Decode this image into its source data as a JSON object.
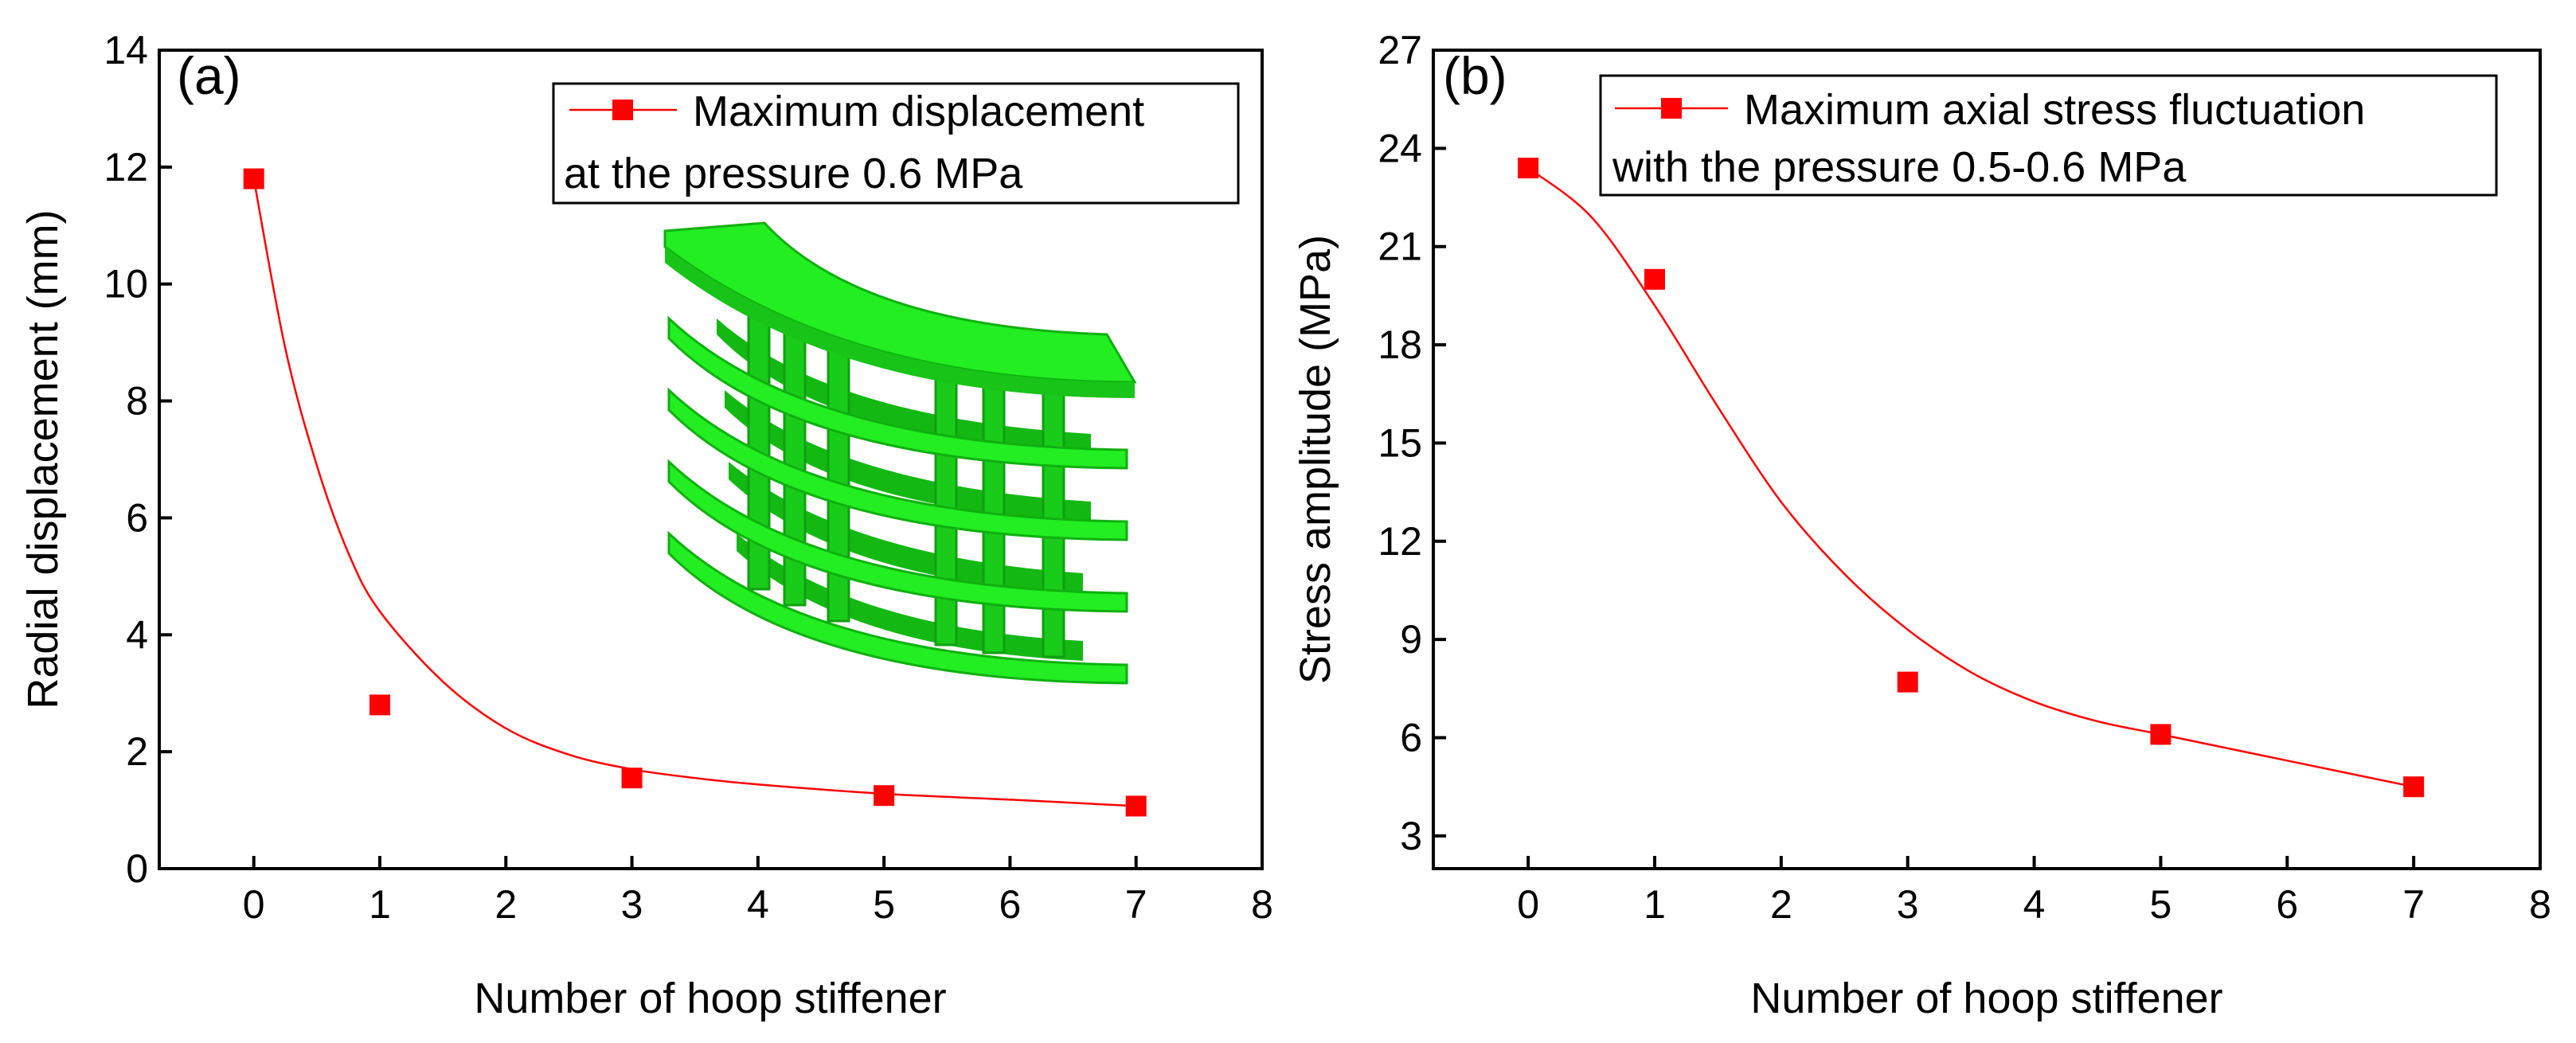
{
  "chart_data": [
    {
      "type": "scatter",
      "panel_label": "(a)",
      "xlabel": "Number of hoop stiffener",
      "ylabel": "Radial displacement (mm)",
      "xlim": [
        -0.75,
        8
      ],
      "ylim": [
        0,
        14
      ],
      "xticks": [
        0,
        1,
        2,
        3,
        4,
        5,
        6,
        7,
        8
      ],
      "yticks": [
        0,
        2,
        4,
        6,
        8,
        10,
        12,
        14
      ],
      "grid": false,
      "legend": {
        "placement": "top-right",
        "lines": [
          "Maximum displacement",
          "at the pressure 0.6 MPa"
        ]
      },
      "series": [
        {
          "name": "Maximum displacement at the pressure 0.6 MPa",
          "x": [
            0,
            1,
            3,
            5,
            7
          ],
          "y": [
            11.8,
            2.8,
            1.55,
            1.25,
            1.07
          ],
          "fit_curve": {
            "x": [
              0,
              0.25,
              0.5,
              0.75,
              1,
              1.5,
              2,
              2.5,
              3,
              3.5,
              4,
              5,
              6,
              7
            ],
            "y": [
              11.8,
              8.9,
              6.9,
              5.4,
              4.4,
              3.2,
              2.4,
              1.95,
              1.7,
              1.55,
              1.44,
              1.28,
              1.18,
              1.07
            ]
          }
        }
      ],
      "colors": {
        "series": "#ff0000",
        "curve": "#ff0000",
        "inset": "#22ee22"
      },
      "inset": "green-hoop-stiffened-shell-segment"
    },
    {
      "type": "scatter",
      "panel_label": "(b)",
      "xlabel": "Number of hoop stiffener",
      "ylabel": "Stress amplitude (MPa)",
      "xlim": [
        -0.75,
        8
      ],
      "ylim": [
        2,
        27
      ],
      "xticks": [
        0,
        1,
        2,
        3,
        4,
        5,
        6,
        7,
        8
      ],
      "yticks": [
        3,
        6,
        9,
        12,
        15,
        18,
        21,
        24,
        27
      ],
      "grid": false,
      "legend": {
        "placement": "top-right",
        "lines": [
          "Maximum axial stress fluctuation",
          "with the pressure 0.5-0.6 MPa"
        ]
      },
      "series": [
        {
          "name": "Maximum axial stress fluctuation with the pressure 0.5-0.6 MPa",
          "x": [
            0,
            1,
            3,
            5,
            7
          ],
          "y": [
            23.4,
            20.0,
            7.7,
            6.1,
            4.5
          ],
          "fit_curve": {
            "x": [
              0,
              0.5,
              1,
              1.5,
              2,
              2.5,
              3,
              3.5,
              4,
              4.5,
              5,
              6,
              7
            ],
            "y": [
              23.4,
              21.9,
              19.2,
              16.1,
              13.2,
              11.0,
              9.3,
              8.0,
              7.1,
              6.5,
              6.1,
              5.3,
              4.5
            ]
          }
        }
      ],
      "colors": {
        "series": "#ff0000",
        "curve": "#ff0000"
      }
    }
  ]
}
